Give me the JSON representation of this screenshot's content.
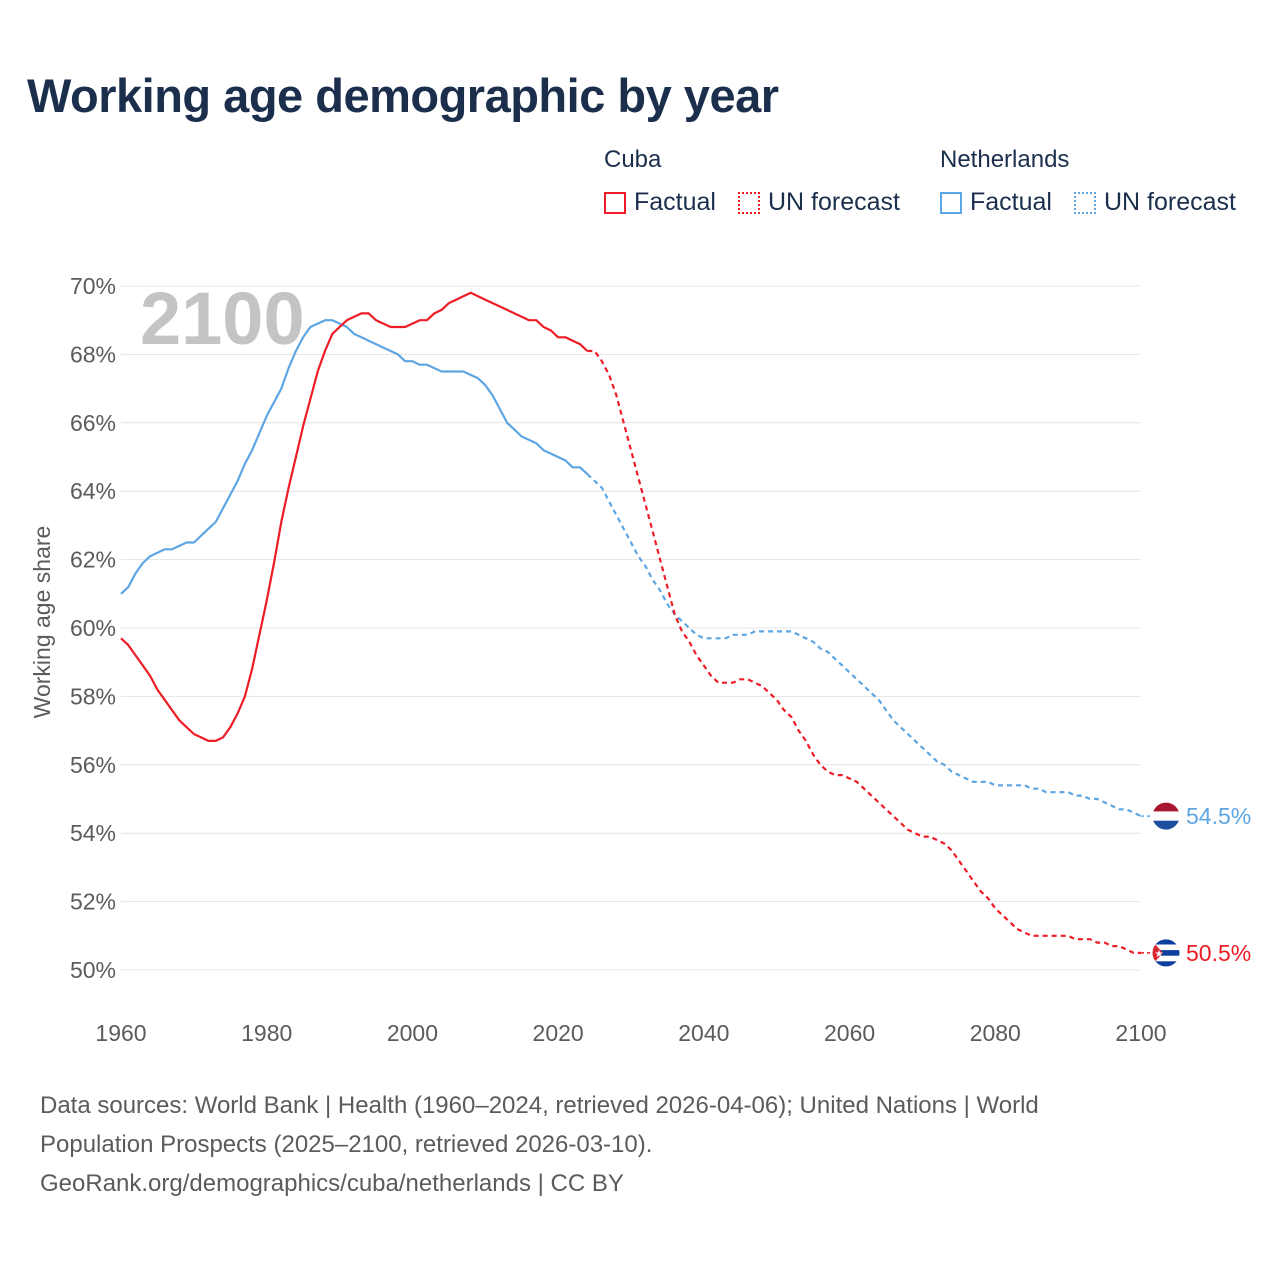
{
  "title": "Working age demographic by year",
  "legend": {
    "groups": [
      {
        "name": "Cuba",
        "factual_label": "Factual",
        "forecast_label": "UN forecast",
        "color": "#ee1c25"
      },
      {
        "name": "Netherlands",
        "factual_label": "Factual",
        "forecast_label": "UN forecast",
        "color": "#5ea6e3"
      }
    ]
  },
  "chart_data": {
    "type": "line",
    "title": "Working age demographic by year",
    "ylabel": "Working age share",
    "xlabel": "",
    "year_overlay": "2100",
    "xlim": [
      1960,
      2100
    ],
    "ylim": [
      50,
      70
    ],
    "x_ticks": [
      1960,
      1980,
      2000,
      2020,
      2040,
      2060,
      2080,
      2100
    ],
    "x_tick_labels": [
      "1960",
      "1980",
      "2000",
      "2020",
      "2040",
      "2060",
      "2080",
      "2100"
    ],
    "y_ticks": [
      50,
      52,
      54,
      56,
      58,
      60,
      62,
      64,
      66,
      68,
      70
    ],
    "y_tick_labels": [
      "50%",
      "52%",
      "54%",
      "56%",
      "58%",
      "60%",
      "62%",
      "64%",
      "66%",
      "68%",
      "70%"
    ],
    "factual_end_year": 2024,
    "series": [
      {
        "name": "Cuba",
        "color": "#ee1c25",
        "end_label": "50.5%",
        "flag": "cuba-flag",
        "points": [
          [
            1960,
            59.7
          ],
          [
            1961,
            59.5
          ],
          [
            1962,
            59.2
          ],
          [
            1963,
            58.9
          ],
          [
            1964,
            58.6
          ],
          [
            1965,
            58.2
          ],
          [
            1966,
            57.9
          ],
          [
            1967,
            57.6
          ],
          [
            1968,
            57.3
          ],
          [
            1969,
            57.1
          ],
          [
            1970,
            56.9
          ],
          [
            1971,
            56.8
          ],
          [
            1972,
            56.7
          ],
          [
            1973,
            56.7
          ],
          [
            1974,
            56.8
          ],
          [
            1975,
            57.1
          ],
          [
            1976,
            57.5
          ],
          [
            1977,
            58.0
          ],
          [
            1978,
            58.8
          ],
          [
            1979,
            59.8
          ],
          [
            1980,
            60.8
          ],
          [
            1981,
            61.9
          ],
          [
            1982,
            63.1
          ],
          [
            1983,
            64.1
          ],
          [
            1984,
            65.0
          ],
          [
            1985,
            65.9
          ],
          [
            1986,
            66.7
          ],
          [
            1987,
            67.5
          ],
          [
            1988,
            68.1
          ],
          [
            1989,
            68.6
          ],
          [
            1990,
            68.8
          ],
          [
            1991,
            69.0
          ],
          [
            1992,
            69.1
          ],
          [
            1993,
            69.2
          ],
          [
            1994,
            69.2
          ],
          [
            1995,
            69.0
          ],
          [
            1996,
            68.9
          ],
          [
            1997,
            68.8
          ],
          [
            1998,
            68.8
          ],
          [
            1999,
            68.8
          ],
          [
            2000,
            68.9
          ],
          [
            2001,
            69.0
          ],
          [
            2002,
            69.0
          ],
          [
            2003,
            69.2
          ],
          [
            2004,
            69.3
          ],
          [
            2005,
            69.5
          ],
          [
            2006,
            69.6
          ],
          [
            2007,
            69.7
          ],
          [
            2008,
            69.8
          ],
          [
            2009,
            69.7
          ],
          [
            2010,
            69.6
          ],
          [
            2011,
            69.5
          ],
          [
            2012,
            69.4
          ],
          [
            2013,
            69.3
          ],
          [
            2014,
            69.2
          ],
          [
            2015,
            69.1
          ],
          [
            2016,
            69.0
          ],
          [
            2017,
            69.0
          ],
          [
            2018,
            68.8
          ],
          [
            2019,
            68.7
          ],
          [
            2020,
            68.5
          ],
          [
            2021,
            68.5
          ],
          [
            2022,
            68.4
          ],
          [
            2023,
            68.3
          ],
          [
            2024,
            68.1
          ],
          [
            2025,
            68.1
          ],
          [
            2026,
            67.8
          ],
          [
            2027,
            67.4
          ],
          [
            2028,
            66.8
          ],
          [
            2029,
            66.0
          ],
          [
            2030,
            65.2
          ],
          [
            2031,
            64.4
          ],
          [
            2032,
            63.6
          ],
          [
            2033,
            62.8
          ],
          [
            2034,
            62.0
          ],
          [
            2035,
            61.2
          ],
          [
            2036,
            60.4
          ],
          [
            2037,
            59.9
          ],
          [
            2038,
            59.6
          ],
          [
            2039,
            59.2
          ],
          [
            2040,
            58.9
          ],
          [
            2041,
            58.6
          ],
          [
            2042,
            58.4
          ],
          [
            2043,
            58.4
          ],
          [
            2044,
            58.4
          ],
          [
            2045,
            58.5
          ],
          [
            2046,
            58.5
          ],
          [
            2047,
            58.4
          ],
          [
            2048,
            58.3
          ],
          [
            2049,
            58.1
          ],
          [
            2050,
            57.9
          ],
          [
            2051,
            57.6
          ],
          [
            2052,
            57.4
          ],
          [
            2053,
            57.0
          ],
          [
            2054,
            56.7
          ],
          [
            2055,
            56.3
          ],
          [
            2056,
            56.0
          ],
          [
            2057,
            55.8
          ],
          [
            2058,
            55.7
          ],
          [
            2059,
            55.7
          ],
          [
            2060,
            55.6
          ],
          [
            2061,
            55.5
          ],
          [
            2062,
            55.3
          ],
          [
            2063,
            55.1
          ],
          [
            2064,
            54.9
          ],
          [
            2065,
            54.7
          ],
          [
            2066,
            54.5
          ],
          [
            2067,
            54.3
          ],
          [
            2068,
            54.1
          ],
          [
            2069,
            54.0
          ],
          [
            2070,
            53.9
          ],
          [
            2071,
            53.9
          ],
          [
            2072,
            53.8
          ],
          [
            2073,
            53.7
          ],
          [
            2074,
            53.5
          ],
          [
            2075,
            53.2
          ],
          [
            2076,
            52.9
          ],
          [
            2077,
            52.6
          ],
          [
            2078,
            52.3
          ],
          [
            2079,
            52.1
          ],
          [
            2080,
            51.8
          ],
          [
            2081,
            51.6
          ],
          [
            2082,
            51.4
          ],
          [
            2083,
            51.2
          ],
          [
            2084,
            51.1
          ],
          [
            2085,
            51.0
          ],
          [
            2086,
            51.0
          ],
          [
            2087,
            51.0
          ],
          [
            2088,
            51.0
          ],
          [
            2089,
            51.0
          ],
          [
            2090,
            51.0
          ],
          [
            2091,
            50.9
          ],
          [
            2092,
            50.9
          ],
          [
            2093,
            50.9
          ],
          [
            2094,
            50.8
          ],
          [
            2095,
            50.8
          ],
          [
            2096,
            50.7
          ],
          [
            2097,
            50.7
          ],
          [
            2098,
            50.6
          ],
          [
            2099,
            50.5
          ],
          [
            2100,
            50.5
          ]
        ]
      },
      {
        "name": "Netherlands",
        "color": "#5ea6e3",
        "end_label": "54.5%",
        "flag": "netherlands-flag",
        "points": [
          [
            1960,
            61.0
          ],
          [
            1961,
            61.2
          ],
          [
            1962,
            61.6
          ],
          [
            1963,
            61.9
          ],
          [
            1964,
            62.1
          ],
          [
            1965,
            62.2
          ],
          [
            1966,
            62.3
          ],
          [
            1967,
            62.3
          ],
          [
            1968,
            62.4
          ],
          [
            1969,
            62.5
          ],
          [
            1970,
            62.5
          ],
          [
            1971,
            62.7
          ],
          [
            1972,
            62.9
          ],
          [
            1973,
            63.1
          ],
          [
            1974,
            63.5
          ],
          [
            1975,
            63.9
          ],
          [
            1976,
            64.3
          ],
          [
            1977,
            64.8
          ],
          [
            1978,
            65.2
          ],
          [
            1979,
            65.7
          ],
          [
            1980,
            66.2
          ],
          [
            1981,
            66.6
          ],
          [
            1982,
            67.0
          ],
          [
            1983,
            67.6
          ],
          [
            1984,
            68.1
          ],
          [
            1985,
            68.5
          ],
          [
            1986,
            68.8
          ],
          [
            1987,
            68.9
          ],
          [
            1988,
            69.0
          ],
          [
            1989,
            69.0
          ],
          [
            1990,
            68.9
          ],
          [
            1991,
            68.8
          ],
          [
            1992,
            68.6
          ],
          [
            1993,
            68.5
          ],
          [
            1994,
            68.4
          ],
          [
            1995,
            68.3
          ],
          [
            1996,
            68.2
          ],
          [
            1997,
            68.1
          ],
          [
            1998,
            68.0
          ],
          [
            1999,
            67.8
          ],
          [
            2000,
            67.8
          ],
          [
            2001,
            67.7
          ],
          [
            2002,
            67.7
          ],
          [
            2003,
            67.6
          ],
          [
            2004,
            67.5
          ],
          [
            2005,
            67.5
          ],
          [
            2006,
            67.5
          ],
          [
            2007,
            67.5
          ],
          [
            2008,
            67.4
          ],
          [
            2009,
            67.3
          ],
          [
            2010,
            67.1
          ],
          [
            2011,
            66.8
          ],
          [
            2012,
            66.4
          ],
          [
            2013,
            66.0
          ],
          [
            2014,
            65.8
          ],
          [
            2015,
            65.6
          ],
          [
            2016,
            65.5
          ],
          [
            2017,
            65.4
          ],
          [
            2018,
            65.2
          ],
          [
            2019,
            65.1
          ],
          [
            2020,
            65.0
          ],
          [
            2021,
            64.9
          ],
          [
            2022,
            64.7
          ],
          [
            2023,
            64.7
          ],
          [
            2024,
            64.5
          ],
          [
            2025,
            64.3
          ],
          [
            2026,
            64.1
          ],
          [
            2027,
            63.7
          ],
          [
            2028,
            63.3
          ],
          [
            2029,
            62.9
          ],
          [
            2030,
            62.5
          ],
          [
            2031,
            62.1
          ],
          [
            2032,
            61.8
          ],
          [
            2033,
            61.4
          ],
          [
            2034,
            61.1
          ],
          [
            2035,
            60.7
          ],
          [
            2036,
            60.4
          ],
          [
            2037,
            60.2
          ],
          [
            2038,
            60.0
          ],
          [
            2039,
            59.8
          ],
          [
            2040,
            59.7
          ],
          [
            2041,
            59.7
          ],
          [
            2042,
            59.7
          ],
          [
            2043,
            59.7
          ],
          [
            2044,
            59.8
          ],
          [
            2045,
            59.8
          ],
          [
            2046,
            59.8
          ],
          [
            2047,
            59.9
          ],
          [
            2048,
            59.9
          ],
          [
            2049,
            59.9
          ],
          [
            2050,
            59.9
          ],
          [
            2051,
            59.9
          ],
          [
            2052,
            59.9
          ],
          [
            2053,
            59.8
          ],
          [
            2054,
            59.7
          ],
          [
            2055,
            59.6
          ],
          [
            2056,
            59.4
          ],
          [
            2057,
            59.3
          ],
          [
            2058,
            59.1
          ],
          [
            2059,
            58.9
          ],
          [
            2060,
            58.7
          ],
          [
            2061,
            58.5
          ],
          [
            2062,
            58.3
          ],
          [
            2063,
            58.1
          ],
          [
            2064,
            57.9
          ],
          [
            2065,
            57.6
          ],
          [
            2066,
            57.3
          ],
          [
            2067,
            57.1
          ],
          [
            2068,
            56.9
          ],
          [
            2069,
            56.7
          ],
          [
            2070,
            56.5
          ],
          [
            2071,
            56.3
          ],
          [
            2072,
            56.1
          ],
          [
            2073,
            56.0
          ],
          [
            2074,
            55.8
          ],
          [
            2075,
            55.7
          ],
          [
            2076,
            55.6
          ],
          [
            2077,
            55.5
          ],
          [
            2078,
            55.5
          ],
          [
            2079,
            55.5
          ],
          [
            2080,
            55.4
          ],
          [
            2081,
            55.4
          ],
          [
            2082,
            55.4
          ],
          [
            2083,
            55.4
          ],
          [
            2084,
            55.4
          ],
          [
            2085,
            55.3
          ],
          [
            2086,
            55.3
          ],
          [
            2087,
            55.2
          ],
          [
            2088,
            55.2
          ],
          [
            2089,
            55.2
          ],
          [
            2090,
            55.2
          ],
          [
            2091,
            55.1
          ],
          [
            2092,
            55.1
          ],
          [
            2093,
            55.0
          ],
          [
            2094,
            55.0
          ],
          [
            2095,
            54.9
          ],
          [
            2096,
            54.8
          ],
          [
            2097,
            54.7
          ],
          [
            2098,
            54.7
          ],
          [
            2099,
            54.6
          ],
          [
            2100,
            54.5
          ]
        ]
      }
    ]
  },
  "sources": {
    "line1": "Data sources: World Bank | Health (1960–2024, retrieved 2026-04-06); United Nations | World",
    "line2": "Population Prospects (2025–2100, retrieved 2026-03-10).",
    "line3": "GeoRank.org/demographics/cuba/netherlands | CC BY"
  }
}
